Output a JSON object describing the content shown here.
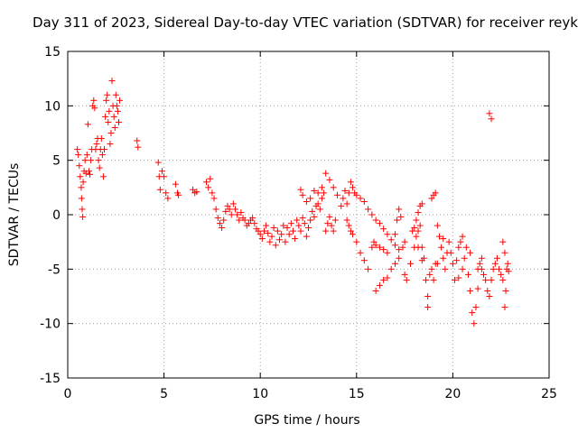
{
  "chart_data": {
    "type": "scatter",
    "title": "Day 311 of 2023, Sidereal Day-to-day VTEC variation (SDTVAR) for receiver reyk",
    "xlabel": "GPS time / hours",
    "ylabel": "SDTVAR / TECUs",
    "xlim": [
      0,
      25
    ],
    "ylim": [
      -15,
      15
    ],
    "xticks": [
      "0",
      "5",
      "10",
      "15",
      "20",
      "25"
    ],
    "yticks": [
      "-15",
      "-10",
      "-5",
      "0",
      "5",
      "10",
      "15"
    ],
    "grid": true,
    "marker": "+",
    "color": "#ff0000",
    "series": [
      {
        "name": "SDTVAR",
        "points": [
          [
            0.5,
            6
          ],
          [
            0.55,
            5.5
          ],
          [
            0.6,
            4.5
          ],
          [
            0.65,
            3.5
          ],
          [
            0.7,
            2.5
          ],
          [
            0.72,
            1.5
          ],
          [
            0.75,
            0.5
          ],
          [
            0.78,
            -0.2
          ],
          [
            0.8,
            3
          ],
          [
            0.85,
            4
          ],
          [
            0.9,
            5
          ],
          [
            0.95,
            3.8
          ],
          [
            1.0,
            5.5
          ],
          [
            1.05,
            8.3
          ],
          [
            1.1,
            4
          ],
          [
            1.15,
            3.7
          ],
          [
            1.2,
            5
          ],
          [
            1.25,
            6
          ],
          [
            1.3,
            10
          ],
          [
            1.35,
            10.5
          ],
          [
            1.4,
            9.8
          ],
          [
            1.45,
            6
          ],
          [
            1.5,
            6.5
          ],
          [
            1.55,
            7
          ],
          [
            1.6,
            5
          ],
          [
            1.65,
            4.3
          ],
          [
            1.7,
            6
          ],
          [
            1.75,
            7
          ],
          [
            1.8,
            5.5
          ],
          [
            1.85,
            3.5
          ],
          [
            1.9,
            6
          ],
          [
            1.95,
            9
          ],
          [
            2.0,
            10.5
          ],
          [
            2.05,
            11
          ],
          [
            2.1,
            8.5
          ],
          [
            2.15,
            9.5
          ],
          [
            2.2,
            6.5
          ],
          [
            2.25,
            7.5
          ],
          [
            2.3,
            12.3
          ],
          [
            2.35,
            10
          ],
          [
            2.4,
            9
          ],
          [
            2.45,
            8
          ],
          [
            2.5,
            11
          ],
          [
            2.55,
            10
          ],
          [
            2.6,
            9.5
          ],
          [
            2.65,
            8.5
          ],
          [
            2.7,
            10.5
          ],
          [
            3.6,
            6.8
          ],
          [
            3.65,
            6.2
          ],
          [
            4.7,
            4.8
          ],
          [
            4.75,
            3.5
          ],
          [
            4.8,
            2.3
          ],
          [
            4.9,
            4
          ],
          [
            5.0,
            3.5
          ],
          [
            5.1,
            2
          ],
          [
            5.2,
            1.5
          ],
          [
            5.6,
            2.8
          ],
          [
            5.7,
            2
          ],
          [
            5.75,
            1.8
          ],
          [
            6.5,
            2.3
          ],
          [
            6.6,
            2
          ],
          [
            6.7,
            2.1
          ],
          [
            7.2,
            3
          ],
          [
            7.3,
            2.5
          ],
          [
            7.4,
            3.3
          ],
          [
            7.5,
            2
          ],
          [
            7.6,
            1.5
          ],
          [
            7.7,
            0.5
          ],
          [
            7.8,
            -0.3
          ],
          [
            7.9,
            -0.8
          ],
          [
            8.0,
            -1.2
          ],
          [
            8.1,
            -0.5
          ],
          [
            8.2,
            0.3
          ],
          [
            8.3,
            0.8
          ],
          [
            8.4,
            0.5
          ],
          [
            8.5,
            0
          ],
          [
            8.6,
            1
          ],
          [
            8.7,
            0.5
          ],
          [
            8.8,
            0
          ],
          [
            8.9,
            -0.5
          ],
          [
            9.0,
            0.2
          ],
          [
            9.1,
            -0.3
          ],
          [
            9.2,
            -0.5
          ],
          [
            9.3,
            -1
          ],
          [
            9.4,
            -0.8
          ],
          [
            9.5,
            -0.5
          ],
          [
            9.6,
            -0.3
          ],
          [
            9.7,
            -0.8
          ],
          [
            9.8,
            -1.3
          ],
          [
            9.9,
            -1.5
          ],
          [
            10.0,
            -1.8
          ],
          [
            10.1,
            -2.2
          ],
          [
            10.2,
            -1.5
          ],
          [
            10.3,
            -1
          ],
          [
            10.4,
            -1.7
          ],
          [
            10.5,
            -2.5
          ],
          [
            10.6,
            -2
          ],
          [
            10.7,
            -1.2
          ],
          [
            10.8,
            -2.8
          ],
          [
            10.9,
            -1.5
          ],
          [
            11.0,
            -2.3
          ],
          [
            11.1,
            -1.8
          ],
          [
            11.2,
            -1
          ],
          [
            11.3,
            -2.5
          ],
          [
            11.4,
            -1.2
          ],
          [
            11.5,
            -1.8
          ],
          [
            11.6,
            -0.8
          ],
          [
            11.7,
            -1.5
          ],
          [
            11.8,
            -2.2
          ],
          [
            11.9,
            -0.5
          ],
          [
            12.0,
            -1
          ],
          [
            12.1,
            -1.5
          ],
          [
            12.2,
            -0.3
          ],
          [
            12.3,
            -0.8
          ],
          [
            12.4,
            -2
          ],
          [
            12.5,
            -1.2
          ],
          [
            12.6,
            -0.5
          ],
          [
            12.7,
            0.3
          ],
          [
            12.8,
            -0.2
          ],
          [
            12.9,
            0.8
          ],
          [
            13.0,
            1
          ],
          [
            13.1,
            0.5
          ],
          [
            13.2,
            1.5
          ],
          [
            13.3,
            2
          ],
          [
            13.4,
            -1.5
          ],
          [
            13.5,
            -0.8
          ],
          [
            13.6,
            -0.2
          ],
          [
            13.7,
            -1
          ],
          [
            13.8,
            -1.5
          ],
          [
            13.9,
            -0.5
          ],
          [
            12.1,
            2.3
          ],
          [
            12.2,
            1.8
          ],
          [
            12.4,
            1.2
          ],
          [
            12.6,
            1.5
          ],
          [
            12.8,
            2.2
          ],
          [
            13.0,
            2
          ],
          [
            13.2,
            2.5
          ],
          [
            13.4,
            3.8
          ],
          [
            13.6,
            3.2
          ],
          [
            13.8,
            2.5
          ],
          [
            14.0,
            1.8
          ],
          [
            14.2,
            0.8
          ],
          [
            14.3,
            1.5
          ],
          [
            14.4,
            2.2
          ],
          [
            14.5,
            1
          ],
          [
            14.6,
            2
          ],
          [
            14.7,
            3
          ],
          [
            14.8,
            2.5
          ],
          [
            14.9,
            2
          ],
          [
            15.0,
            1.8
          ],
          [
            15.2,
            1.5
          ],
          [
            15.4,
            1.2
          ],
          [
            15.6,
            0.5
          ],
          [
            15.8,
            0
          ],
          [
            16.0,
            -0.5
          ],
          [
            16.2,
            -0.8
          ],
          [
            16.4,
            -1.3
          ],
          [
            16.6,
            -1.8
          ],
          [
            16.8,
            -2.3
          ],
          [
            17.0,
            -2.8
          ],
          [
            17.2,
            -3.2
          ],
          [
            14.5,
            -0.5
          ],
          [
            14.6,
            -1
          ],
          [
            14.7,
            -1.5
          ],
          [
            14.8,
            -1.8
          ],
          [
            15.0,
            -2.5
          ],
          [
            15.2,
            -3.5
          ],
          [
            15.4,
            -4.2
          ],
          [
            15.6,
            -5
          ],
          [
            15.8,
            -3
          ],
          [
            15.9,
            -2.5
          ],
          [
            16.0,
            -2.8
          ],
          [
            16.2,
            -3
          ],
          [
            16.4,
            -3.2
          ],
          [
            16.6,
            -3.5
          ],
          [
            16.0,
            -7
          ],
          [
            16.2,
            -6.5
          ],
          [
            16.4,
            -6
          ],
          [
            16.6,
            -5.8
          ],
          [
            16.8,
            -5
          ],
          [
            17.0,
            -4.5
          ],
          [
            17.2,
            -4
          ],
          [
            17.4,
            -3
          ],
          [
            17.5,
            -5.5
          ],
          [
            17.6,
            -6
          ],
          [
            17.8,
            -4.5
          ],
          [
            18.0,
            -3
          ],
          [
            18.1,
            -2
          ],
          [
            18.2,
            -1.5
          ],
          [
            18.3,
            -1
          ],
          [
            18.4,
            -3
          ],
          [
            18.5,
            -4
          ],
          [
            18.6,
            -6
          ],
          [
            18.7,
            -7.5
          ],
          [
            18.8,
            -5.5
          ],
          [
            18.9,
            -5
          ],
          [
            19.0,
            -6
          ],
          [
            19.1,
            -4.5
          ],
          [
            17.9,
            -1.5
          ],
          [
            18.0,
            -1.2
          ],
          [
            18.1,
            -0.5
          ],
          [
            18.2,
            0.2
          ],
          [
            18.3,
            0.8
          ],
          [
            18.4,
            1
          ],
          [
            18.9,
            1.5
          ],
          [
            19.0,
            1.8
          ],
          [
            19.1,
            2
          ],
          [
            19.2,
            -1
          ],
          [
            19.3,
            -2
          ],
          [
            19.4,
            -3
          ],
          [
            19.5,
            -4
          ],
          [
            19.6,
            -5
          ],
          [
            19.7,
            -3.5
          ],
          [
            19.8,
            -2.5
          ],
          [
            19.9,
            -3.5
          ],
          [
            20.0,
            -4.5
          ],
          [
            20.1,
            -6
          ],
          [
            20.2,
            -4.2
          ],
          [
            20.3,
            -3
          ],
          [
            20.4,
            -2.5
          ],
          [
            20.5,
            -5
          ],
          [
            20.6,
            -4
          ],
          [
            20.7,
            -3
          ],
          [
            20.8,
            -5.5
          ],
          [
            20.9,
            -7
          ],
          [
            21.0,
            -9
          ],
          [
            21.1,
            -10
          ],
          [
            21.2,
            -8.5
          ],
          [
            21.3,
            -5
          ],
          [
            21.4,
            -4.5
          ],
          [
            21.5,
            -5
          ],
          [
            21.6,
            -5.5
          ],
          [
            21.7,
            -6
          ],
          [
            21.8,
            -7
          ],
          [
            21.9,
            -7.5
          ],
          [
            22.0,
            -6
          ],
          [
            22.1,
            -5
          ],
          [
            22.2,
            -4.5
          ],
          [
            22.3,
            -4
          ],
          [
            22.4,
            -5
          ],
          [
            22.5,
            -5.5
          ],
          [
            22.6,
            -6
          ],
          [
            22.7,
            -8.5
          ],
          [
            22.75,
            -7
          ],
          [
            22.8,
            -5
          ],
          [
            22.85,
            -4.5
          ],
          [
            22.9,
            -5.2
          ],
          [
            17.0,
            -1.8
          ],
          [
            17.1,
            -0.5
          ],
          [
            17.2,
            0.5
          ],
          [
            17.3,
            -0.2
          ],
          [
            17.5,
            -2.5
          ],
          [
            18.2,
            -3
          ],
          [
            18.4,
            -4.2
          ],
          [
            18.7,
            -8.5
          ],
          [
            19.2,
            -4.5
          ],
          [
            20.5,
            -2
          ],
          [
            20.9,
            -3.5
          ],
          [
            21.5,
            -4
          ],
          [
            21.9,
            9.3
          ],
          [
            22.0,
            8.8
          ],
          [
            19.5,
            -2.2
          ],
          [
            20.3,
            -5.8
          ],
          [
            21.3,
            -6.8
          ],
          [
            22.6,
            -2.5
          ],
          [
            22.7,
            -3.5
          ]
        ]
      }
    ]
  }
}
